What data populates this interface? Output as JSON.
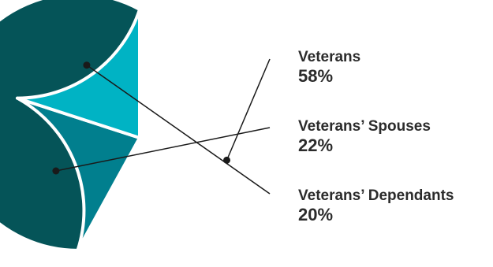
{
  "chart_data": {
    "type": "pie",
    "slices": [
      {
        "label": "Veterans",
        "value": 58,
        "value_label": "58%",
        "color": "#055458"
      },
      {
        "label": "Veterans’ Spouses",
        "value": 22,
        "value_label": "22%",
        "color": "#017f8e"
      },
      {
        "label": "Veterans’ Dependants",
        "value": 20,
        "value_label": "20%",
        "color": "#00b3c4"
      }
    ],
    "start_angle_deg": 90,
    "direction": "counterclockwise",
    "slice_border_color": "#ffffff",
    "leader_color": "#1a1a1a"
  }
}
